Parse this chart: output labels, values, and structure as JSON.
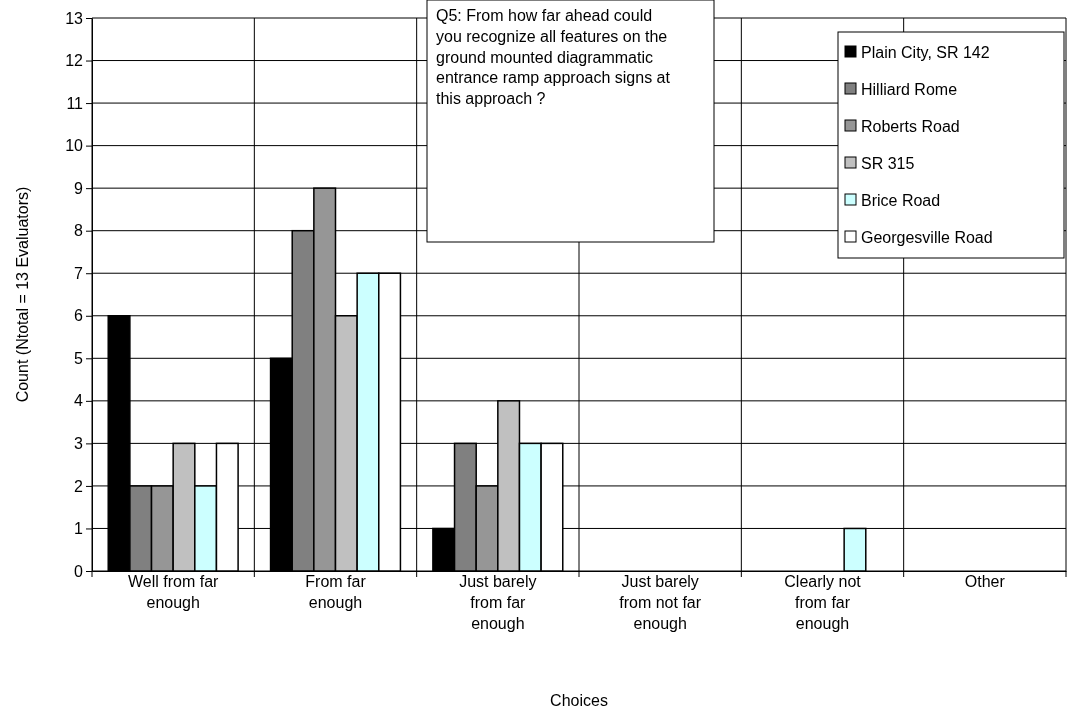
{
  "chart_data": {
    "type": "bar",
    "title": "Q5: From how far ahead could you recognize all features on the ground mounted diagrammatic entrance ramp approach signs at this approach ?",
    "xlabel": "Choices",
    "ylabel": "Count (Ntotal = 13 Evaluators)",
    "categories": [
      "Well from far enough",
      "From far enough",
      "Just barely from far enough",
      "Just barely from not far enough",
      "Clearly not from far enough",
      "Other"
    ],
    "series": [
      {
        "name": "Plain City, SR 142",
        "color": "#000000",
        "values": [
          6,
          5,
          1,
          0,
          0,
          0
        ]
      },
      {
        "name": "Hilliard Rome",
        "color": "#808080",
        "values": [
          2,
          8,
          3,
          0,
          0,
          0
        ]
      },
      {
        "name": "Roberts Road",
        "color": "#969696",
        "values": [
          2,
          9,
          2,
          0,
          0,
          0
        ]
      },
      {
        "name": "SR 315",
        "color": "#c0c0c0",
        "values": [
          3,
          6,
          4,
          0,
          0,
          0
        ]
      },
      {
        "name": "Brice Road",
        "color": "#ccffff",
        "values": [
          2,
          7,
          3,
          0,
          1,
          0
        ]
      },
      {
        "name": "Georgesville Road",
        "color": "#ffffff",
        "values": [
          3,
          7,
          3,
          0,
          0,
          0
        ]
      }
    ],
    "ylim": [
      0,
      13
    ],
    "yticks": [
      0,
      1,
      2,
      3,
      4,
      5,
      6,
      7,
      8,
      9,
      10,
      11,
      12,
      13
    ],
    "grid": true,
    "legend": "top right"
  }
}
